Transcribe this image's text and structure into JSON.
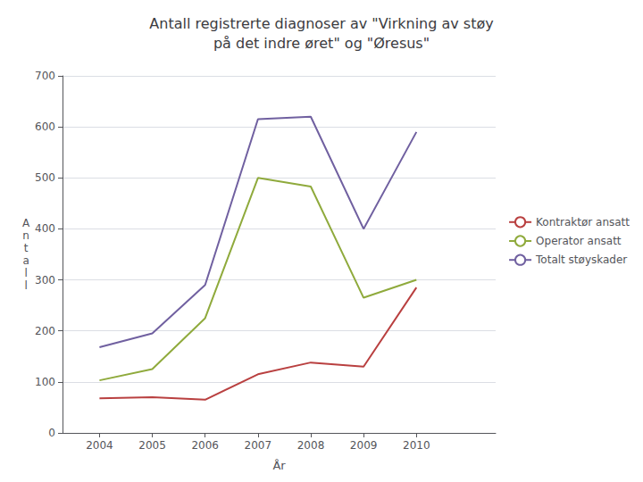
{
  "chart_data": {
    "type": "line",
    "title": "Antall registrerte diagnoser av \"Virkning av støy\npå det indre øret\" og \"Øresus\"",
    "xlabel": "År",
    "ylabel": "A\nn\nt\na\nl\nl",
    "x": [
      2004,
      2005,
      2006,
      2007,
      2008,
      2009,
      2010
    ],
    "series": [
      {
        "name": "Kontraktør ansatt",
        "color": "#b94040",
        "values": [
          68,
          70,
          65,
          115,
          138,
          130,
          285
        ]
      },
      {
        "name": "Operator ansatt",
        "color": "#8faa3c",
        "values": [
          103,
          125,
          225,
          500,
          483,
          265,
          300
        ]
      },
      {
        "name": "Totalt støyskader",
        "color": "#7060a0",
        "values": [
          168,
          195,
          290,
          615,
          620,
          400,
          590
        ]
      }
    ],
    "xlim": [
      2003.3,
      2011.5
    ],
    "xticks": [
      2004,
      2005,
      2006,
      2007,
      2008,
      2009,
      2010
    ],
    "ylim": [
      0,
      700
    ],
    "yticks": [
      0,
      100,
      200,
      300,
      400,
      500,
      600,
      700
    ],
    "grid": true,
    "legend": "right"
  }
}
